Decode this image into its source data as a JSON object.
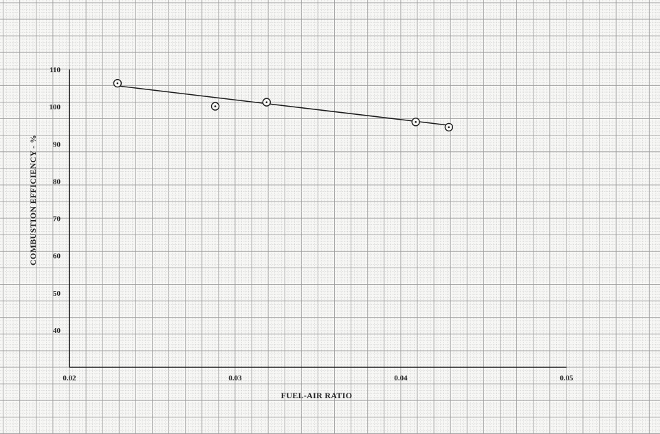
{
  "chart_data": {
    "type": "scatter",
    "title": "",
    "xlabel": "FUEL-AIR RATIO",
    "ylabel": "COMBUSTION EFFICIENCY - %",
    "xlim": [
      0.02,
      0.05
    ],
    "ylim": [
      30,
      110
    ],
    "x_ticks": [
      0.02,
      0.03,
      0.04,
      0.05
    ],
    "x_tick_labels": [
      "0.02",
      "0.03",
      "0.04",
      "0.05"
    ],
    "y_ticks": [
      40,
      50,
      60,
      70,
      80,
      90,
      100,
      110
    ],
    "y_tick_labels": [
      "40",
      "50",
      "60",
      "70",
      "80",
      "90",
      "100",
      "110"
    ],
    "grid": true,
    "colors": {
      "grid_minor": "#c9c9c9",
      "grid_major": "#9d9d9d",
      "ink": "#1a1a1a",
      "paper": "#f7f7f5"
    },
    "series": [
      {
        "points": [
          {
            "x": 0.0229,
            "y": 106.3
          },
          {
            "x": 0.0288,
            "y": 100.1
          },
          {
            "x": 0.0319,
            "y": 101.2
          },
          {
            "x": 0.0409,
            "y": 95.9
          },
          {
            "x": 0.0429,
            "y": 94.5
          }
        ],
        "marker": "circle-dot"
      }
    ],
    "fit_line": {
      "x": [
        0.0229,
        0.0429
      ],
      "y": [
        105.6,
        95.0
      ]
    }
  }
}
